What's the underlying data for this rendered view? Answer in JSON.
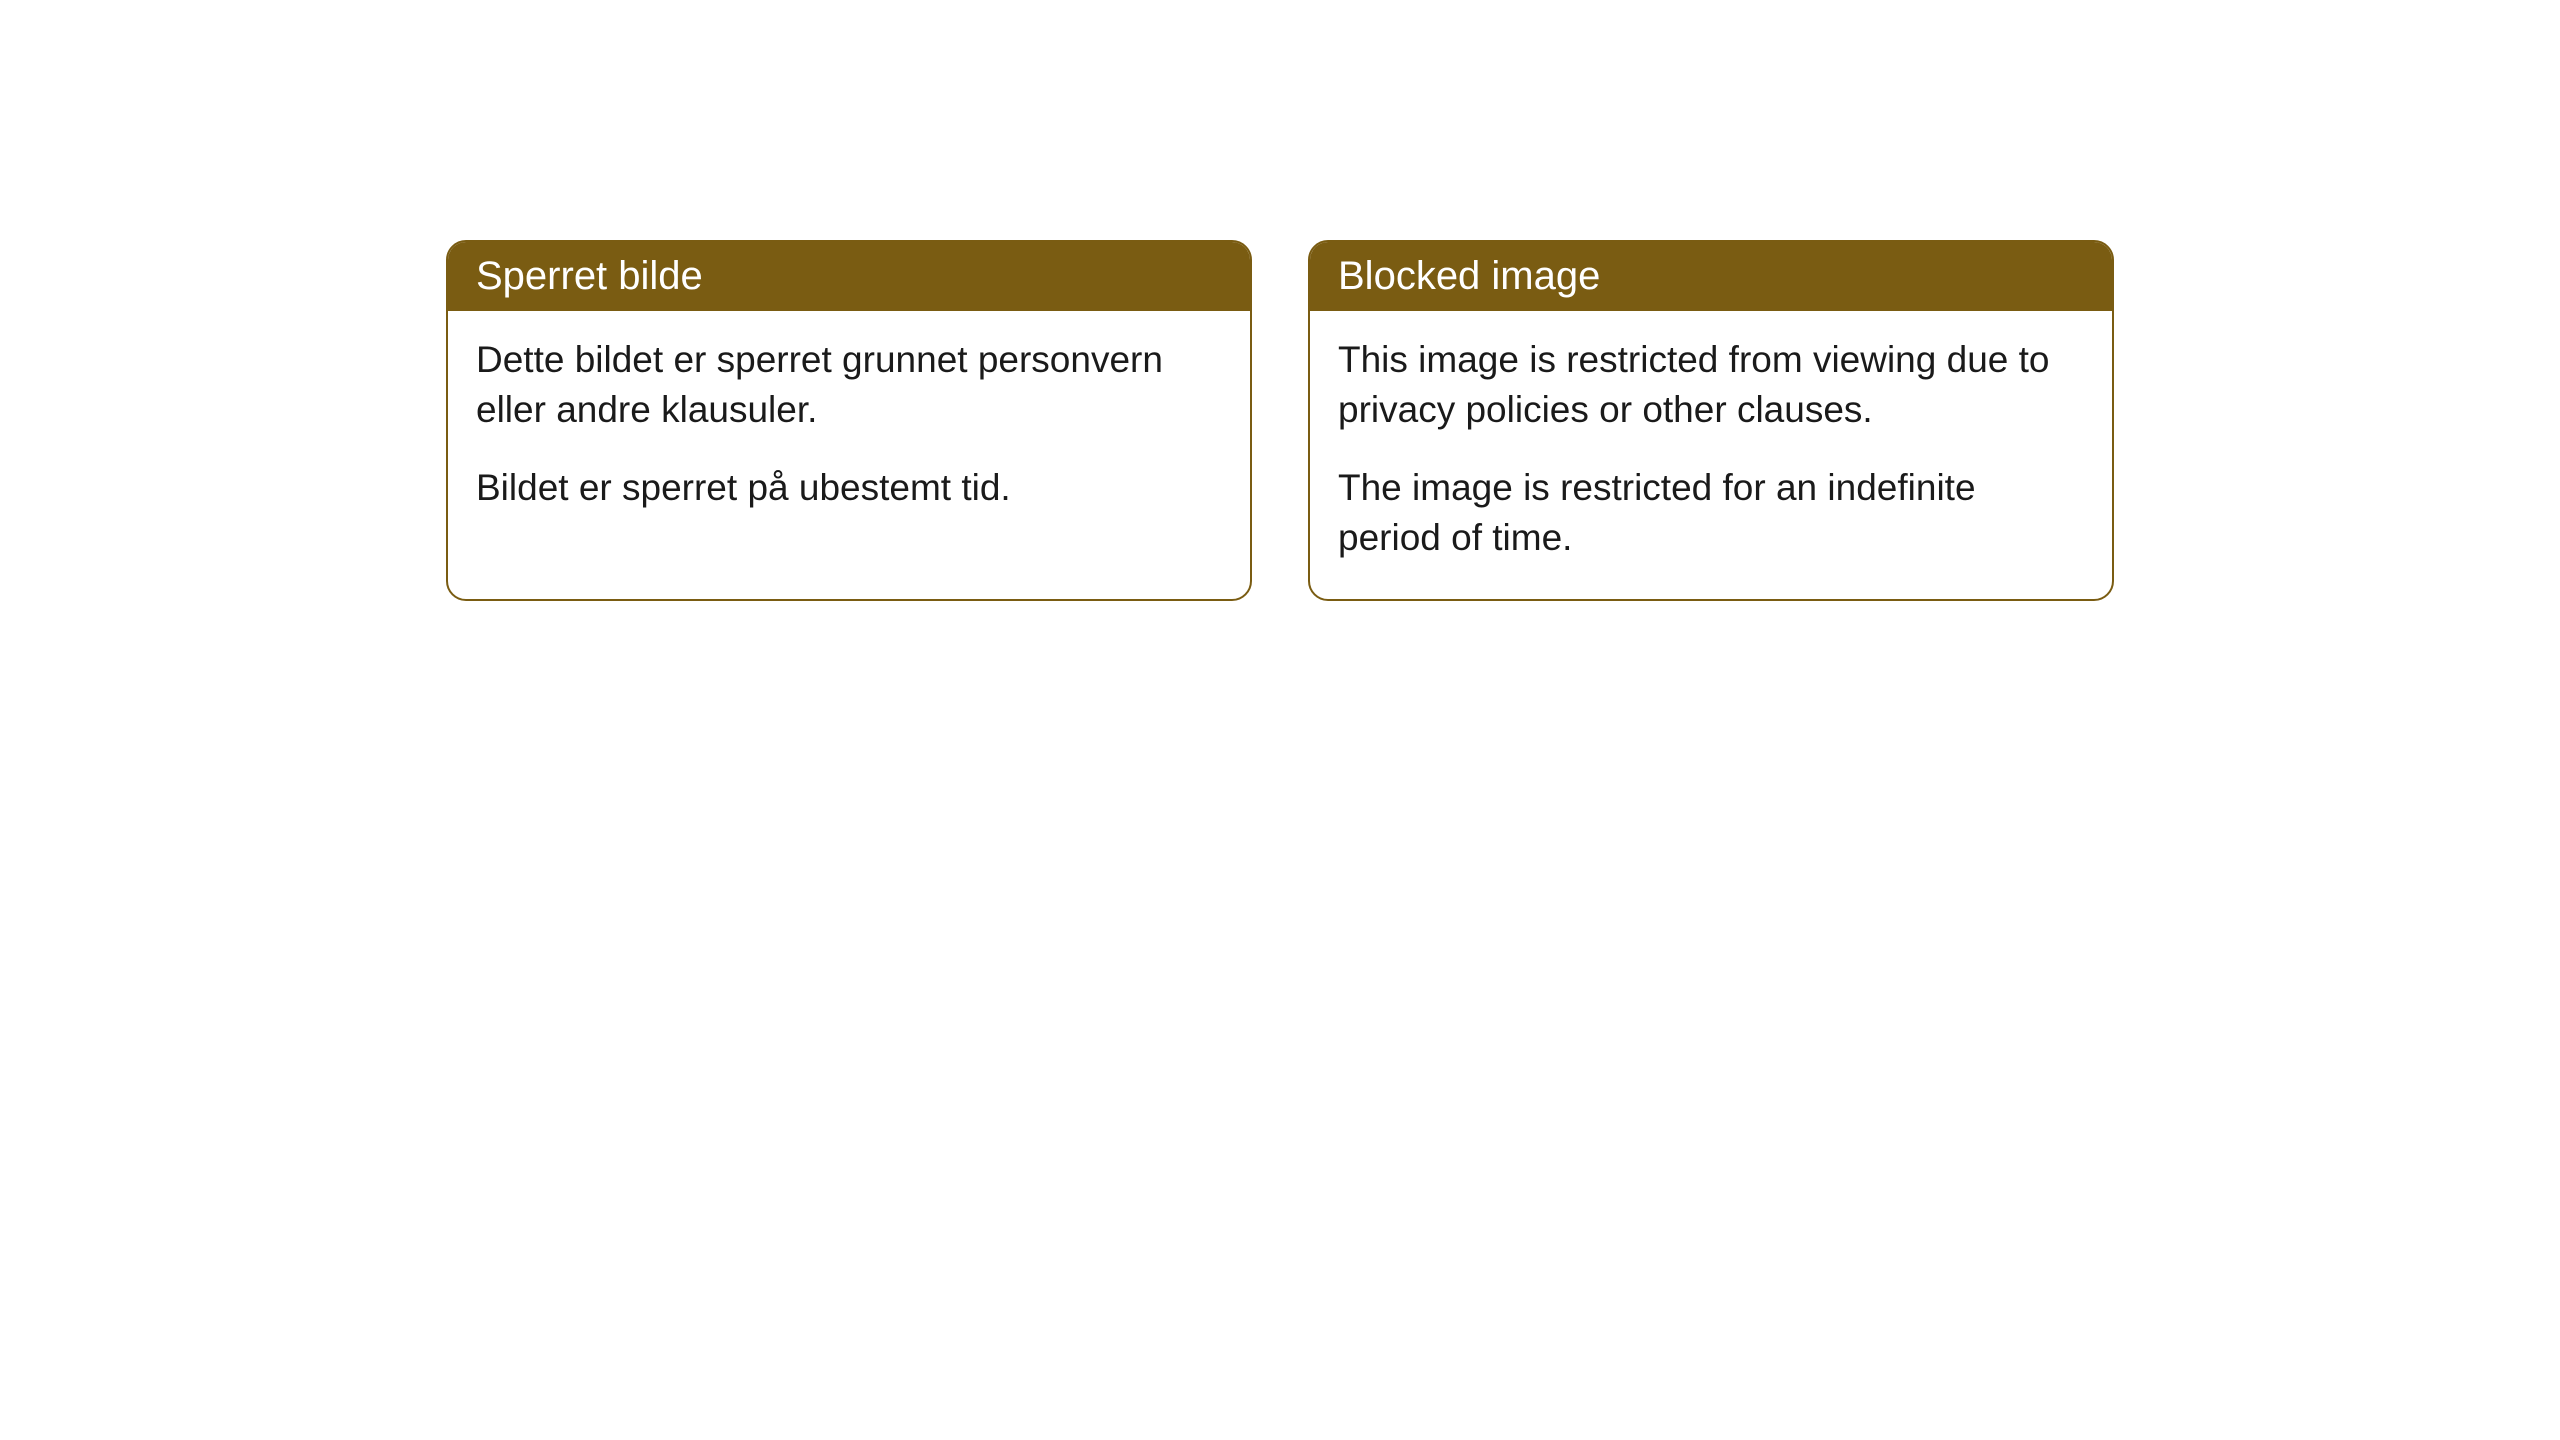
{
  "cards": [
    {
      "title": "Sperret bilde",
      "paragraph1": "Dette bildet er sperret grunnet personvern eller andre klausuler.",
      "paragraph2": "Bildet er sperret på ubestemt tid."
    },
    {
      "title": "Blocked image",
      "paragraph1": "This image is restricted from viewing due to privacy policies or other clauses.",
      "paragraph2": "The image is restricted for an indefinite period of time."
    }
  ],
  "style": {
    "header_background": "#7a5c12",
    "header_text_color": "#ffffff",
    "border_color": "#7a5c12",
    "body_text_color": "#1a1a1a",
    "card_background": "#ffffff",
    "page_background": "#ffffff",
    "border_radius": 20,
    "header_fontsize": 40,
    "body_fontsize": 37
  }
}
